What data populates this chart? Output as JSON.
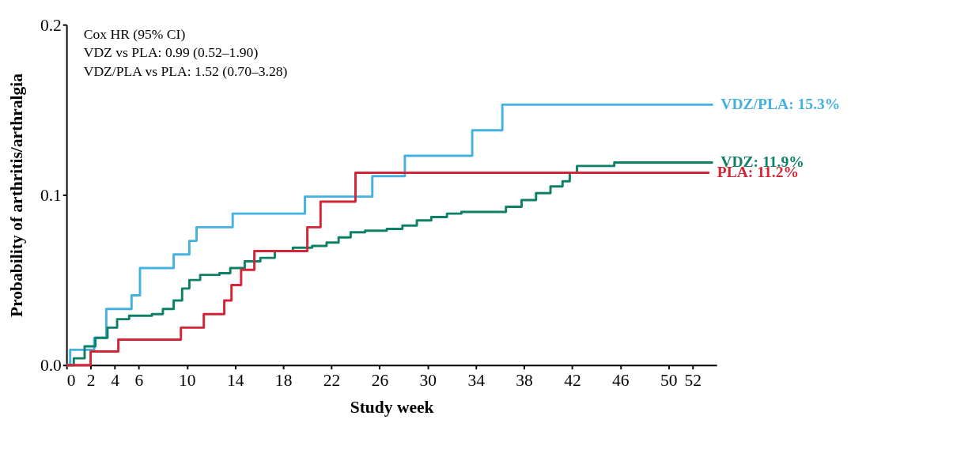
{
  "chart_data": {
    "type": "step",
    "xlabel": "Study week",
    "ylabel": "Probability of arthritis/arthralgia",
    "xlim": [
      0,
      54
    ],
    "xticks": [
      0,
      2,
      4,
      6,
      10,
      14,
      18,
      22,
      26,
      30,
      34,
      38,
      42,
      46,
      50,
      52
    ],
    "ylim": [
      0,
      0.2
    ],
    "yticks": [
      {
        "value": 0,
        "label": "0.0"
      },
      0.1,
      0.2
    ],
    "grid": false,
    "legend": "right",
    "annotations": [
      "Cox HR (95% CI)",
      "VDZ vs PLA: 0.99 (0.52–1.90)",
      "VDZ/PLA vs PLA: 1.52 (0.70–3.28)"
    ],
    "series": [
      {
        "name": "VDZ/PLA: 15.3%",
        "color": "#45b1e0",
        "x": [
          0,
          0.3,
          2.3,
          3.3,
          5.4,
          6.1,
          8.9,
          10.2,
          10.8,
          13.8,
          19.8,
          25.4,
          28.1,
          33.7,
          36.2,
          53.7
        ],
        "values": [
          0,
          0.009,
          0.016,
          0.033,
          0.041,
          0.057,
          0.065,
          0.073,
          0.081,
          0.089,
          0.099,
          0.111,
          0.123,
          0.138,
          0.153,
          0.153
        ]
      },
      {
        "name": "VDZ: 11.9%",
        "color": "#0f8068",
        "x": [
          0,
          0.6,
          1.5,
          2.4,
          3.4,
          4.2,
          5.2,
          7.1,
          8.0,
          8.9,
          9.6,
          10.2,
          11.1,
          12.7,
          13.6,
          14.8,
          16.1,
          17.3,
          18.8,
          20.4,
          21.6,
          22.6,
          23.6,
          24.8,
          26.6,
          27.9,
          29.1,
          30.3,
          31.6,
          32.8,
          35.3,
          36.5,
          37.8,
          39.0,
          40.2,
          41.2,
          41.8,
          42.4,
          44.6,
          45.5,
          53.7
        ],
        "values": [
          0,
          0.004,
          0.011,
          0.016,
          0.022,
          0.027,
          0.029,
          0.03,
          0.033,
          0.038,
          0.045,
          0.05,
          0.053,
          0.054,
          0.057,
          0.061,
          0.063,
          0.067,
          0.069,
          0.07,
          0.072,
          0.075,
          0.078,
          0.079,
          0.08,
          0.082,
          0.085,
          0.087,
          0.089,
          0.09,
          0.09,
          0.093,
          0.097,
          0.101,
          0.105,
          0.108,
          0.113,
          0.117,
          0.117,
          0.119,
          0.119
        ]
      },
      {
        "name": "PLA: 11.2%",
        "color": "#d42435",
        "x": [
          0,
          2.0,
          4.3,
          9.5,
          11.4,
          13.1,
          13.7,
          14.5,
          15.6,
          20.0,
          21.1,
          24.0,
          53.4
        ],
        "values": [
          0,
          0.008,
          0.015,
          0.022,
          0.03,
          0.038,
          0.047,
          0.056,
          0.067,
          0.081,
          0.096,
          0.113,
          0.113
        ]
      }
    ]
  }
}
